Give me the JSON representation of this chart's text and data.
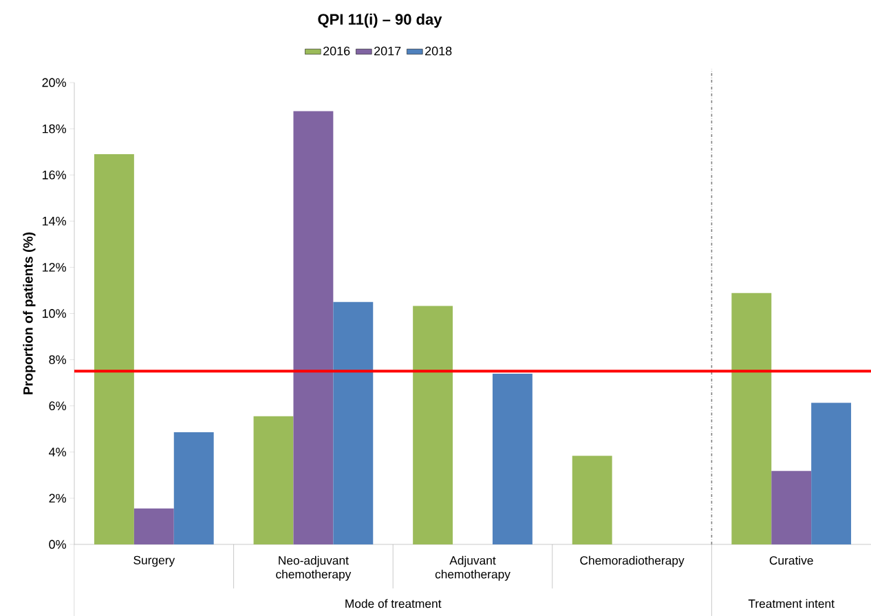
{
  "chart_data": {
    "type": "bar",
    "title": "QPI 11(i) – 90 day",
    "ylabel": "Proportion of patients (%)",
    "categories": [
      "Surgery",
      "Neo-adjuvant chemotherapy",
      "Adjuvant chemotherapy",
      "Chemoradiotherapy",
      "Curative"
    ],
    "series": [
      {
        "name": "2016",
        "color": "#9bbb59",
        "values": [
          16.9,
          5.55,
          10.33,
          3.84,
          10.89
        ]
      },
      {
        "name": "2017",
        "color": "#8064a2",
        "values": [
          1.56,
          18.76,
          null,
          null,
          3.18
        ]
      },
      {
        "name": "2018",
        "color": "#4f81bd",
        "values": [
          4.86,
          10.5,
          7.39,
          null,
          6.13
        ]
      }
    ],
    "ylim": [
      0,
      20
    ],
    "yticks": [
      {
        "value": 0,
        "label": "0%"
      },
      {
        "value": 2,
        "label": "2%"
      },
      {
        "value": 4,
        "label": "4%"
      },
      {
        "value": 6,
        "label": "6%"
      },
      {
        "value": 8,
        "label": "8%"
      },
      {
        "value": 10,
        "label": "10%"
      },
      {
        "value": 12,
        "label": "12%"
      },
      {
        "value": 14,
        "label": "14%"
      },
      {
        "value": 16,
        "label": "16%"
      },
      {
        "value": 18,
        "label": "18%"
      },
      {
        "value": 20,
        "label": "20%"
      }
    ],
    "ref_lines": [
      {
        "axis": "y",
        "value": 7.5,
        "color": "#ff0000",
        "line_style": "solid"
      }
    ],
    "annotations": [
      "Mode of treatment",
      "Treatment intent"
    ],
    "legend": "top",
    "grid": false
  }
}
